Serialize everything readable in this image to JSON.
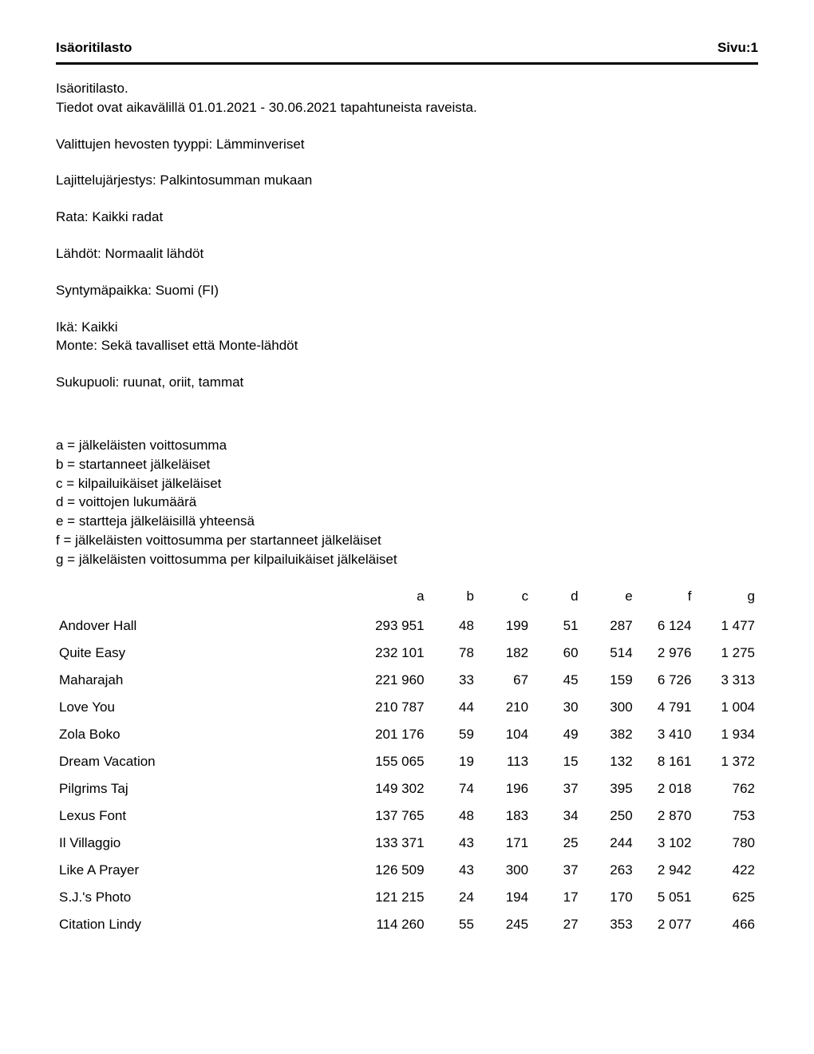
{
  "header": {
    "title": "Isäoritilasto",
    "page_label": "Sivu:1"
  },
  "info": {
    "line1": "Isäoritilasto.",
    "line2": "Tiedot ovat aikavälillä 01.01.2021 - 30.06.2021 tapahtuneista raveista.",
    "type": "Valittujen hevosten tyyppi: Lämminveriset",
    "sort": "Lajittelujärjestys: Palkintosumman mukaan",
    "track": "Rata: Kaikki radat",
    "starts": "Lähdöt: Normaalit lähdöt",
    "birthplace": "Syntymäpaikka: Suomi (FI)",
    "age": "Ikä: Kaikki",
    "monte": "Monte: Sekä tavalliset että Monte-lähdöt",
    "gender": "Sukupuoli: ruunat, oriit, tammat"
  },
  "legend": {
    "a": "a = jälkeläisten voittosumma",
    "b": "b = startanneet jälkeläiset",
    "c": "c = kilpailuikäiset jälkeläiset",
    "d": "d = voittojen lukumäärä",
    "e": "e = startteja jälkeläisillä yhteensä",
    "f": "f = jälkeläisten voittosumma per startanneet jälkeläiset",
    "g": "g = jälkeläisten voittosumma per kilpailuikäiset jälkeläiset"
  },
  "table": {
    "headers": {
      "name": "",
      "a": "a",
      "b": "b",
      "c": "c",
      "d": "d",
      "e": "e",
      "f": "f",
      "g": "g"
    },
    "rows": [
      {
        "name": "Andover Hall",
        "a": "293 951",
        "b": "48",
        "c": "199",
        "d": "51",
        "e": "287",
        "f": "6 124",
        "g": "1 477"
      },
      {
        "name": "Quite Easy",
        "a": "232 101",
        "b": "78",
        "c": "182",
        "d": "60",
        "e": "514",
        "f": "2 976",
        "g": "1 275"
      },
      {
        "name": "Maharajah",
        "a": "221 960",
        "b": "33",
        "c": "67",
        "d": "45",
        "e": "159",
        "f": "6 726",
        "g": "3 313"
      },
      {
        "name": "Love You",
        "a": "210 787",
        "b": "44",
        "c": "210",
        "d": "30",
        "e": "300",
        "f": "4 791",
        "g": "1 004"
      },
      {
        "name": "Zola Boko",
        "a": "201 176",
        "b": "59",
        "c": "104",
        "d": "49",
        "e": "382",
        "f": "3 410",
        "g": "1 934"
      },
      {
        "name": "Dream Vacation",
        "a": "155 065",
        "b": "19",
        "c": "113",
        "d": "15",
        "e": "132",
        "f": "8 161",
        "g": "1 372"
      },
      {
        "name": "Pilgrims Taj",
        "a": "149 302",
        "b": "74",
        "c": "196",
        "d": "37",
        "e": "395",
        "f": "2 018",
        "g": "762"
      },
      {
        "name": "Lexus Font",
        "a": "137 765",
        "b": "48",
        "c": "183",
        "d": "34",
        "e": "250",
        "f": "2 870",
        "g": "753"
      },
      {
        "name": "Il Villaggio",
        "a": "133 371",
        "b": "43",
        "c": "171",
        "d": "25",
        "e": "244",
        "f": "3 102",
        "g": "780"
      },
      {
        "name": "Like A Prayer",
        "a": "126 509",
        "b": "43",
        "c": "300",
        "d": "37",
        "e": "263",
        "f": "2 942",
        "g": "422"
      },
      {
        "name": "S.J.'s Photo",
        "a": "121 215",
        "b": "24",
        "c": "194",
        "d": "17",
        "e": "170",
        "f": "5 051",
        "g": "625"
      },
      {
        "name": "Citation Lindy",
        "a": "114 260",
        "b": "55",
        "c": "245",
        "d": "27",
        "e": "353",
        "f": "2 077",
        "g": "466"
      }
    ]
  }
}
